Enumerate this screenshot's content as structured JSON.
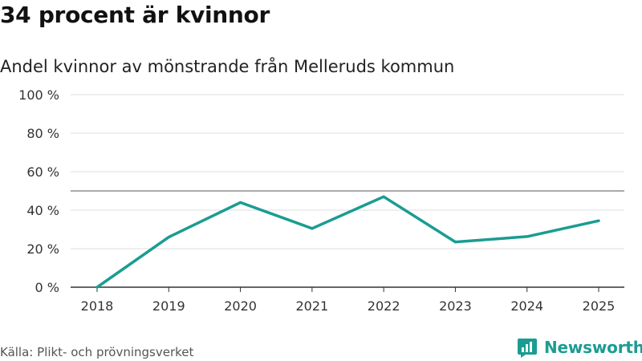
{
  "title": "34 procent är kvinnor",
  "subtitle": "Andel kvinnor av mönstrande från Melleruds kommun",
  "source": "Källa: Plikt- och prövningsverket",
  "brand": {
    "name": "Newsworthy",
    "icon": "newsworthy-logo-icon",
    "color": "#1b9c92"
  },
  "chart_data": {
    "type": "line",
    "title": "34 procent är kvinnor",
    "subtitle": "Andel kvinnor av mönstrande från Melleruds kommun",
    "xlabel": "",
    "ylabel": "",
    "categories": [
      "2018",
      "2019",
      "2020",
      "2021",
      "2022",
      "2023",
      "2024",
      "2025"
    ],
    "series": [
      {
        "name": "Andel kvinnor",
        "values": [
          0,
          26,
          44,
          30.5,
          47,
          23.5,
          26.3,
          34.5
        ],
        "color": "#1b9c92"
      }
    ],
    "ylim": [
      0,
      100
    ],
    "yticks": [
      0,
      20,
      40,
      60,
      80,
      100
    ],
    "ytick_labels": [
      "0 %",
      "20 %",
      "40 %",
      "60 %",
      "80 %",
      "100 %"
    ],
    "reference_line": 50,
    "grid": true
  }
}
